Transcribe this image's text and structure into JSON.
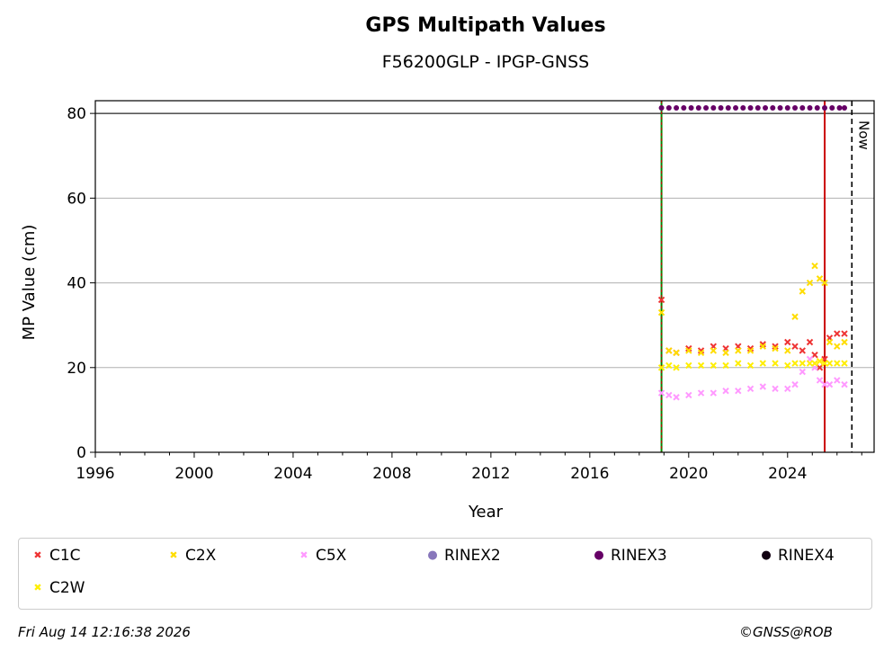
{
  "chart_data": {
    "type": "scatter",
    "title": "GPS Multipath Values",
    "subtitle": "F56200GLP - IPGP-GNSS",
    "xlabel": "Year",
    "ylabel": "MP Value (cm)",
    "xlim": [
      1996,
      2027.5
    ],
    "ylim": [
      0,
      83
    ],
    "xticks": [
      1996,
      2000,
      2004,
      2008,
      2012,
      2016,
      2020,
      2024
    ],
    "yticks": [
      0,
      20,
      40,
      60,
      80
    ],
    "grid": "horizontal",
    "now_label": "Now",
    "now_year": 2026.6,
    "station_start_year": 2018.9,
    "event_line_year": 2025.5,
    "rinex_band_value": 81.3,
    "series": [
      {
        "name": "C1C",
        "color": "#ee3333",
        "marker": "x",
        "x": [
          2018.9,
          2019.2,
          2019.5,
          2020.0,
          2020.5,
          2021.0,
          2021.5,
          2022.0,
          2022.5,
          2023.0,
          2023.5,
          2024.0,
          2024.3,
          2024.6,
          2024.9,
          2025.1,
          2025.3,
          2025.5,
          2025.7,
          2026.0,
          2026.3
        ],
        "y": [
          36,
          24,
          23.5,
          24.5,
          24,
          25,
          24.5,
          25,
          24.5,
          25.5,
          25,
          26,
          25,
          24,
          26,
          23,
          20,
          22,
          27,
          28,
          28
        ]
      },
      {
        "name": "C2X",
        "color": "#ffdd00",
        "marker": "x",
        "x": [
          2018.9,
          2019.2,
          2019.5,
          2020.0,
          2020.5,
          2021.0,
          2021.5,
          2022.0,
          2022.5,
          2023.0,
          2023.5,
          2024.0,
          2024.3,
          2024.6,
          2024.9,
          2025.1,
          2025.3,
          2025.5,
          2025.7,
          2026.0,
          2026.3
        ],
        "y": [
          33,
          24,
          23.5,
          24,
          23.5,
          24,
          23.5,
          24,
          24,
          25,
          24.5,
          24,
          32,
          38,
          40,
          44,
          41,
          40,
          26,
          25,
          26
        ]
      },
      {
        "name": "C5X",
        "color": "#ff99ff",
        "marker": "x",
        "x": [
          2018.9,
          2019.2,
          2019.5,
          2020.0,
          2020.5,
          2021.0,
          2021.5,
          2022.0,
          2022.5,
          2023.0,
          2023.5,
          2024.0,
          2024.3,
          2024.6,
          2024.9,
          2025.1,
          2025.3,
          2025.5,
          2025.7,
          2026.0,
          2026.3
        ],
        "y": [
          14,
          13.5,
          13,
          13.5,
          14,
          14,
          14.5,
          14.5,
          15,
          15.5,
          15,
          15,
          16,
          19,
          22,
          20,
          17,
          16,
          16,
          17,
          16
        ]
      },
      {
        "name": "RINEX2",
        "color": "#8877bb",
        "marker": "o",
        "x": [],
        "y": []
      },
      {
        "name": "RINEX3",
        "color": "#660066",
        "marker": "o",
        "x": [
          2018.9,
          2019.2,
          2019.5,
          2019.8,
          2020.1,
          2020.4,
          2020.7,
          2021.0,
          2021.3,
          2021.6,
          2021.9,
          2022.2,
          2022.5,
          2022.8,
          2023.1,
          2023.4,
          2023.7,
          2024.0,
          2024.3,
          2024.6,
          2024.9,
          2025.2,
          2025.5,
          2025.8,
          2026.1,
          2026.3
        ],
        "y": [
          81.3,
          81.3,
          81.3,
          81.3,
          81.3,
          81.3,
          81.3,
          81.3,
          81.3,
          81.3,
          81.3,
          81.3,
          81.3,
          81.3,
          81.3,
          81.3,
          81.3,
          81.3,
          81.3,
          81.3,
          81.3,
          81.3,
          81.3,
          81.3,
          81.3,
          81.3
        ]
      },
      {
        "name": "RINEX4",
        "color": "#110011",
        "marker": "o",
        "x": [],
        "y": []
      },
      {
        "name": "C2W",
        "color": "#ffee00",
        "marker": "x",
        "x": [
          2018.9,
          2019.2,
          2019.5,
          2020.0,
          2020.5,
          2021.0,
          2021.5,
          2022.0,
          2022.5,
          2023.0,
          2023.5,
          2024.0,
          2024.3,
          2024.6,
          2024.9,
          2025.1,
          2025.3,
          2025.5,
          2025.7,
          2026.0,
          2026.3
        ],
        "y": [
          20,
          20.5,
          20,
          20.5,
          20.5,
          20.5,
          20.5,
          21,
          20.5,
          21,
          21,
          20.5,
          21,
          21,
          21,
          21,
          21.5,
          21,
          21,
          21,
          21
        ]
      }
    ]
  },
  "footer": {
    "date": "Fri Aug 14 12:16:38 2026",
    "copyright": "©GNSS@ROB"
  }
}
